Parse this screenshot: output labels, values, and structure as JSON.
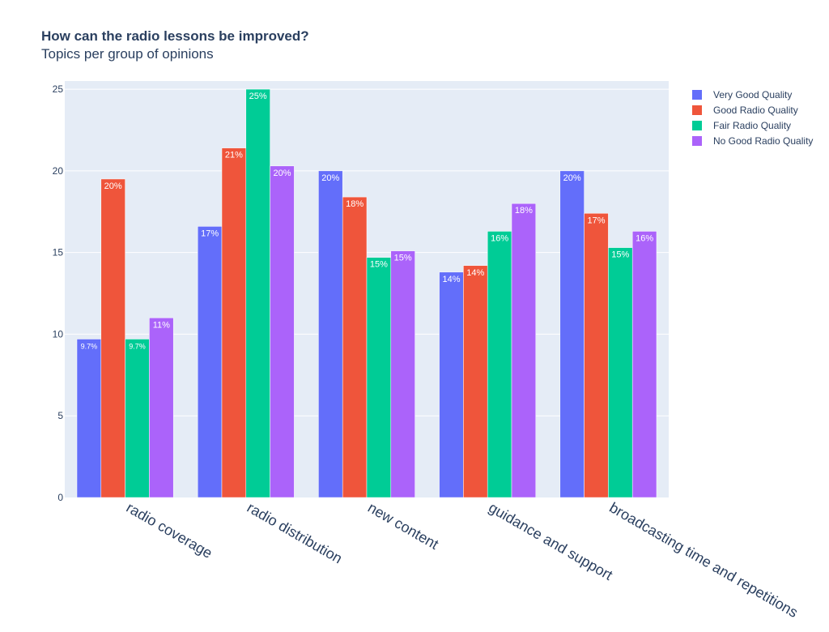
{
  "chart_data": {
    "type": "bar",
    "title": "How can the radio lessons be improved?",
    "subtitle": "Topics per group of opinions",
    "categories": [
      "radio coverage",
      "radio distribution",
      "new content",
      "guidance and support",
      "broadcasting time and repetitions"
    ],
    "series": [
      {
        "name": "Very Good Quality",
        "color": "#636efa",
        "values": [
          9.7,
          16.6,
          20.0,
          13.8,
          20.0
        ],
        "labels": [
          "9.7%",
          "17%",
          "20%",
          "14%",
          "20%"
        ]
      },
      {
        "name": "Good Radio Quality",
        "color": "#ef553b",
        "values": [
          19.5,
          21.4,
          18.4,
          14.2,
          17.4
        ],
        "labels": [
          "20%",
          "21%",
          "18%",
          "14%",
          "17%"
        ]
      },
      {
        "name": "Fair Radio Quality",
        "color": "#00cc96",
        "values": [
          9.7,
          25.0,
          14.7,
          16.3,
          15.3
        ],
        "labels": [
          "9.7%",
          "25%",
          "15%",
          "16%",
          "15%"
        ]
      },
      {
        "name": "No Good Radio Quality",
        "color": "#ab63fa",
        "values": [
          11.0,
          20.3,
          15.1,
          18.0,
          16.3
        ],
        "labels": [
          "11%",
          "20%",
          "15%",
          "18%",
          "16%"
        ]
      }
    ],
    "y_ticks": [
      0,
      5,
      10,
      15,
      20,
      25
    ],
    "ylim": [
      0,
      25.5
    ],
    "grid": true,
    "legend_position": "top-right"
  }
}
